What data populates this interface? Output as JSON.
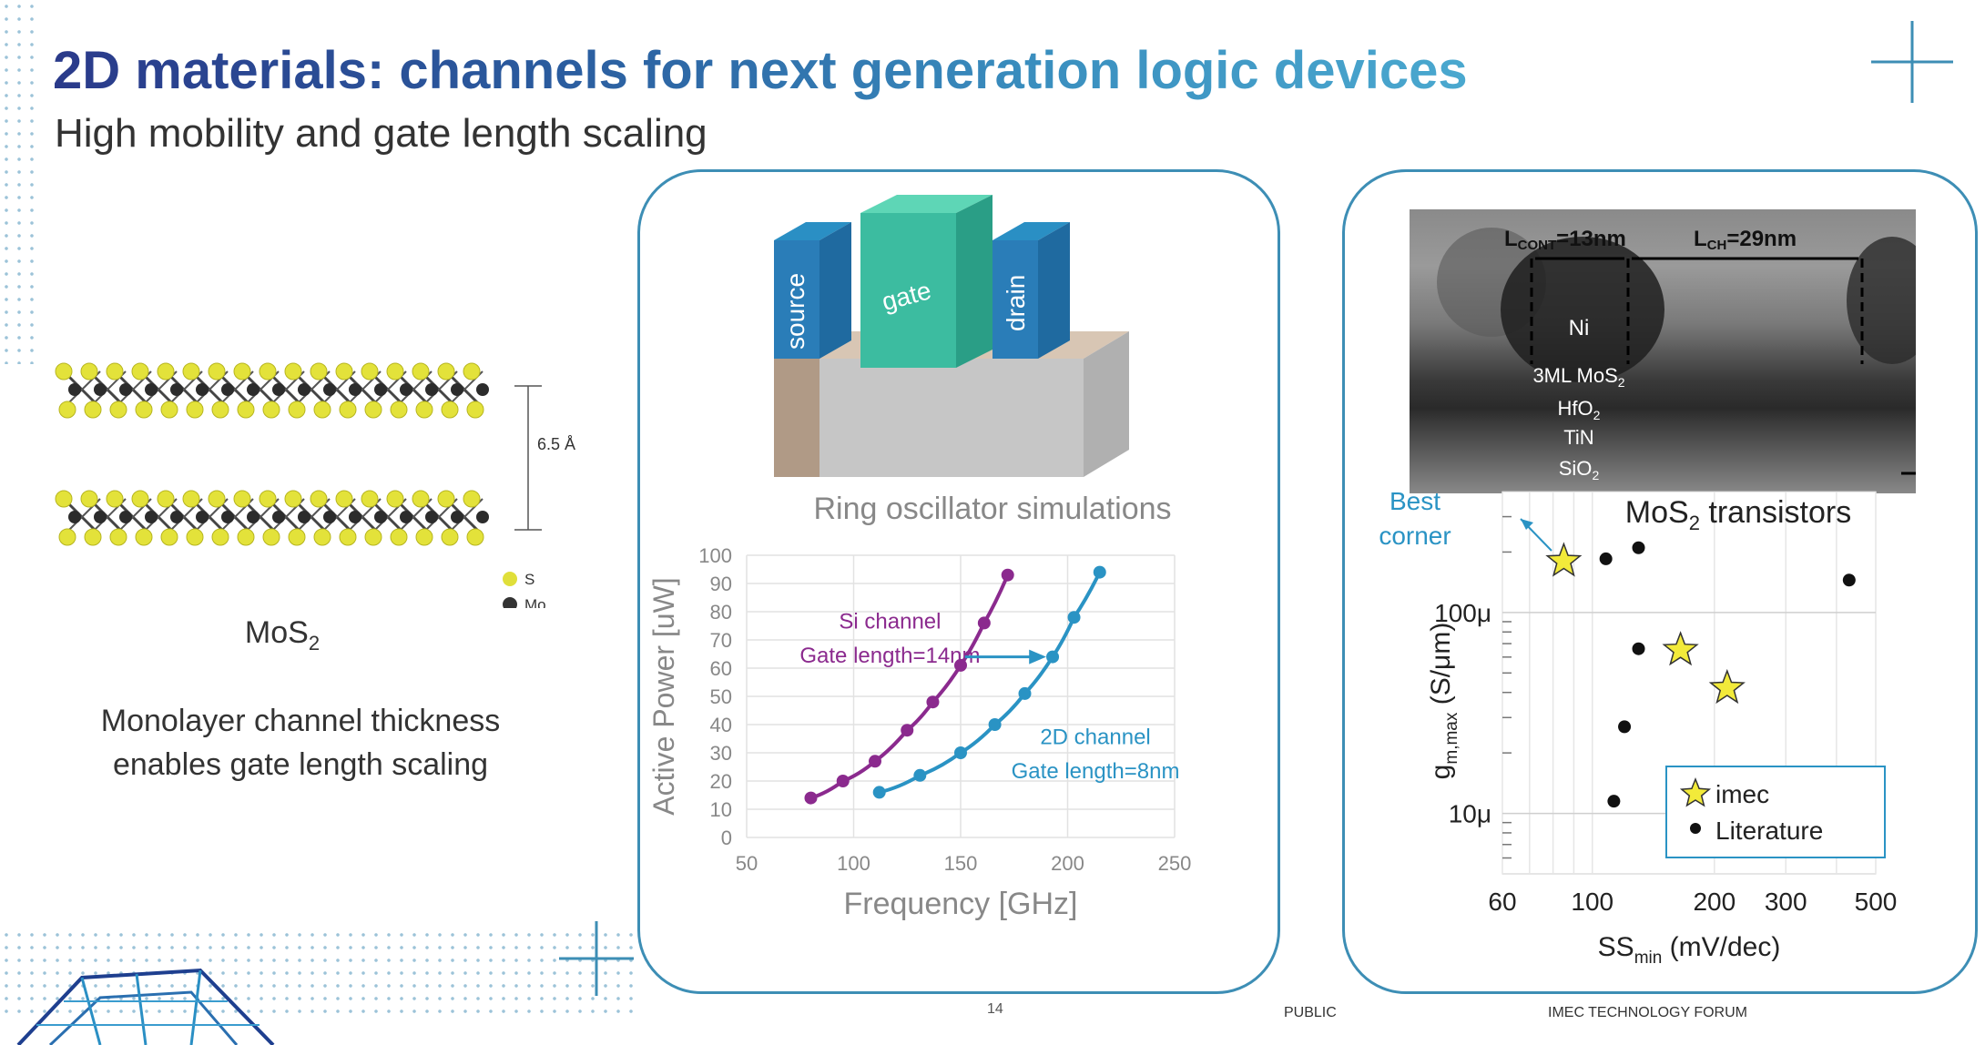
{
  "header": {
    "title": "2D materials: channels for next generation logic devices",
    "subtitle": "High mobility and gate length scaling"
  },
  "left": {
    "spacing_label": "6.5 Å",
    "legend": {
      "s": "S",
      "mo": "Mo"
    },
    "material_label": "MoS",
    "material_sub": "2",
    "desc_line1": "Monolayer channel thickness",
    "desc_line2": "enables gate length scaling"
  },
  "device": {
    "source": "source",
    "gate": "gate",
    "drain": "drain",
    "caption": "Ring oscillator simulations"
  },
  "tem": {
    "lcont": "L",
    "lcont_sub": "CONT",
    "lcont_val": "=13nm",
    "lch": "L",
    "lch_sub": "CH",
    "lch_val": "=29nm",
    "ni": "Ni",
    "layer1": "3ML MoS",
    "layer1_sub": "2",
    "layer2": "HfO",
    "layer2_sub": "2",
    "layer3": "TiN",
    "layer4": "SiO",
    "layer4_sub": "2"
  },
  "footer": {
    "page": "14",
    "public": "PUBLIC",
    "forum": "IMEC TECHNOLOGY FORUM"
  },
  "colors": {
    "accent": "#3d8eb5",
    "si_channel": "#8b2a8e",
    "twod_channel": "#2a93c4",
    "star": "#f2ea3a"
  },
  "chart_data": [
    {
      "type": "scatter",
      "title": "",
      "xlabel": "Frequency [GHz]",
      "ylabel": "Active Power [uW]",
      "xlim": [
        50,
        250
      ],
      "ylim": [
        0,
        100
      ],
      "x_ticks": [
        "50",
        "100",
        "150",
        "200",
        "250"
      ],
      "y_ticks": [
        "0",
        "10",
        "20",
        "30",
        "40",
        "50",
        "60",
        "70",
        "80",
        "90",
        "100"
      ],
      "grid": true,
      "series": [
        {
          "name": "Si channel Gate length=14nm",
          "label_line1": "Si channel",
          "label_line2": "Gate length=14nm",
          "x": [
            80,
            95,
            110,
            125,
            137,
            150,
            161,
            172
          ],
          "y": [
            14,
            20,
            27,
            38,
            48,
            61,
            76,
            93
          ]
        },
        {
          "name": "2D channel Gate length=8nm",
          "label_line1": "2D channel",
          "label_line2": "Gate length=8nm",
          "x": [
            112,
            131,
            150,
            166,
            180,
            193,
            203,
            215
          ],
          "y": [
            16,
            22,
            30,
            40,
            51,
            64,
            78,
            94
          ]
        }
      ],
      "annotation": "arrow from Si channel (150, 64) to 2D channel (190, 64)"
    },
    {
      "type": "scatter",
      "title": "MoS2 transistors",
      "title_main": "MoS",
      "title_sub": "2",
      "title_rest": " transistors",
      "xlabel": "SSmin (mV/dec)",
      "ylabel": "gm,max (S/μm)",
      "x_scale": "log",
      "y_scale": "log",
      "xlim": [
        60,
        500
      ],
      "ylim": [
        5e-06,
        0.0004
      ],
      "x_ticks": [
        "60",
        "100",
        "200",
        "300",
        "500"
      ],
      "y_ticks": [
        "10μ",
        "100μ"
      ],
      "best_corner_line1": "Best",
      "best_corner_line2": "corner",
      "legend": {
        "imec": "imec",
        "literature": "Literature",
        "placement": "bottom-right"
      },
      "series": [
        {
          "name": "imec",
          "marker": "star",
          "x": [
            85,
            165,
            215
          ],
          "y": [
            0.00018,
            6.5e-05,
            4.2e-05
          ]
        },
        {
          "name": "Literature",
          "marker": "dot",
          "x": [
            108,
            130,
            130,
            120,
            113,
            430
          ],
          "y": [
            0.000185,
            0.00021,
            6.6e-05,
            2.7e-05,
            1.15e-05,
            0.000145
          ]
        }
      ]
    }
  ]
}
